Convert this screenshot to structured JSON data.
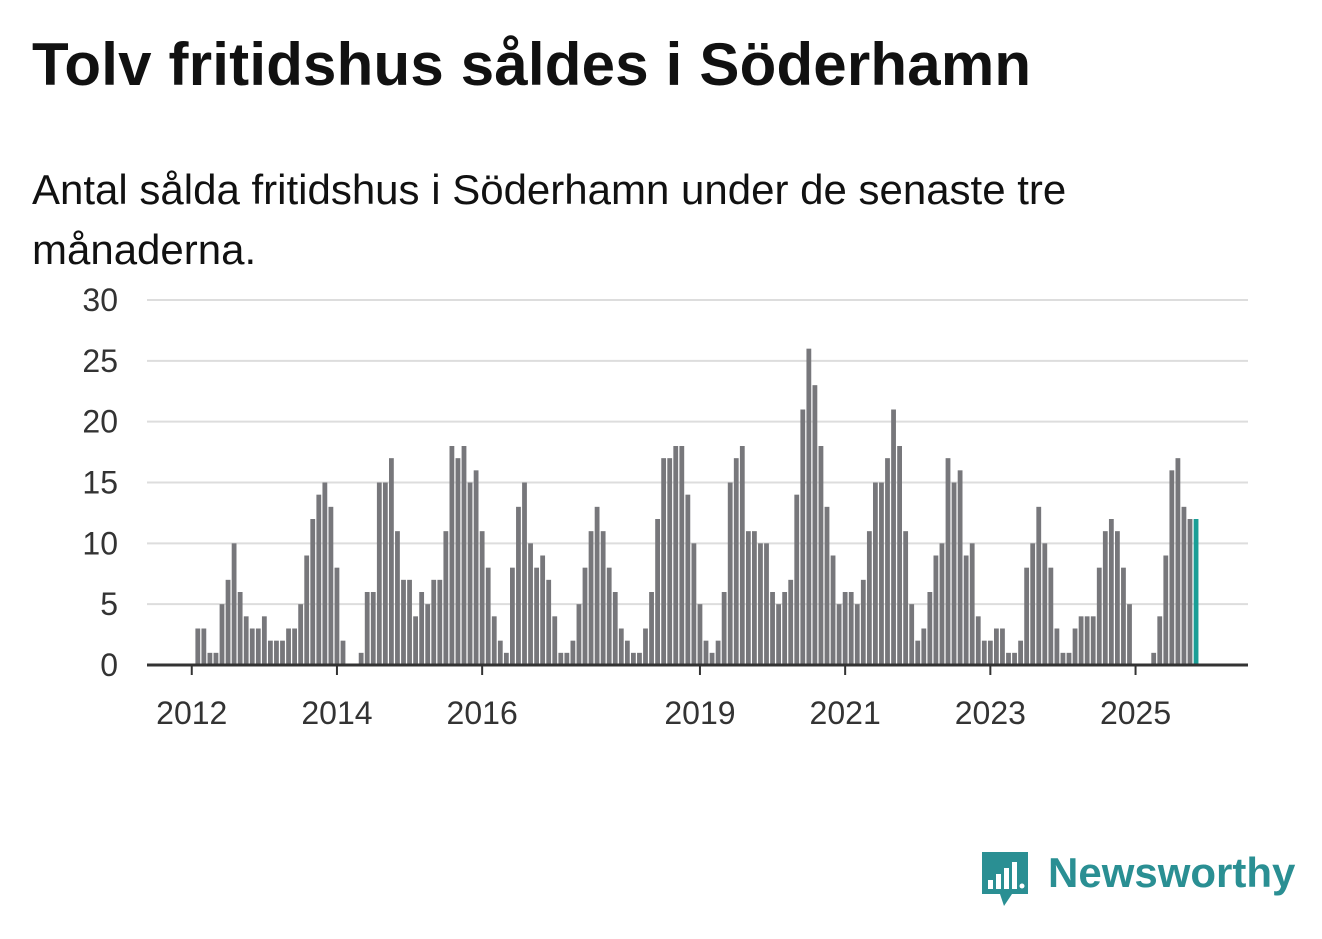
{
  "title": "Tolv fritidshus såldes i Söderhamn",
  "subtitle": "Antal sålda fritidshus i Söderhamn under de senaste tre månaderna.",
  "brand": {
    "name": "Newsworthy",
    "color": "#2a8f93"
  },
  "colors": {
    "bar": "#77777b",
    "highlight": "#1a9e96",
    "grid": "#dddddd",
    "axis": "#333333"
  },
  "chart_data": {
    "type": "bar",
    "title": "Tolv fritidshus såldes i Söderhamn",
    "xlabel": "",
    "ylabel": "",
    "ylim": [
      0,
      30
    ],
    "yticks": [
      0,
      5,
      10,
      15,
      20,
      25,
      30
    ],
    "grid": true,
    "xaxis_labels": [
      {
        "label": "2012",
        "index": 7
      },
      {
        "label": "2014",
        "index": 31
      },
      {
        "label": "2016",
        "index": 55
      },
      {
        "label": "2019",
        "index": 91
      },
      {
        "label": "2021",
        "index": 115
      },
      {
        "label": "2023",
        "index": 139
      },
      {
        "label": "2025",
        "index": 163
      }
    ],
    "values": [
      0,
      0,
      0,
      0,
      0,
      0,
      0,
      0,
      3,
      3,
      1,
      1,
      5,
      7,
      10,
      6,
      4,
      3,
      3,
      4,
      2,
      2,
      2,
      3,
      3,
      5,
      9,
      12,
      14,
      15,
      13,
      8,
      2,
      0,
      0,
      1,
      6,
      6,
      15,
      15,
      17,
      11,
      7,
      7,
      4,
      6,
      5,
      7,
      7,
      11,
      18,
      17,
      18,
      15,
      16,
      11,
      8,
      4,
      2,
      1,
      8,
      13,
      15,
      10,
      8,
      9,
      7,
      4,
      1,
      1,
      2,
      5,
      8,
      11,
      13,
      11,
      8,
      6,
      3,
      2,
      1,
      1,
      3,
      6,
      12,
      17,
      17,
      18,
      18,
      14,
      10,
      5,
      2,
      1,
      2,
      6,
      15,
      17,
      18,
      11,
      11,
      10,
      10,
      6,
      5,
      6,
      7,
      14,
      21,
      26,
      23,
      18,
      13,
      9,
      5,
      6,
      6,
      5,
      7,
      11,
      15,
      15,
      17,
      21,
      18,
      11,
      5,
      2,
      3,
      6,
      9,
      10,
      17,
      15,
      16,
      9,
      10,
      4,
      2,
      2,
      3,
      3,
      1,
      1,
      2,
      8,
      10,
      13,
      10,
      8,
      3,
      1,
      1,
      3,
      4,
      4,
      4,
      8,
      11,
      12,
      11,
      8,
      5,
      0,
      0,
      0,
      1,
      4,
      9,
      16,
      17,
      13,
      12,
      12
    ],
    "highlight_last": true,
    "annotation": {
      "index": 174,
      "text": "12"
    }
  }
}
